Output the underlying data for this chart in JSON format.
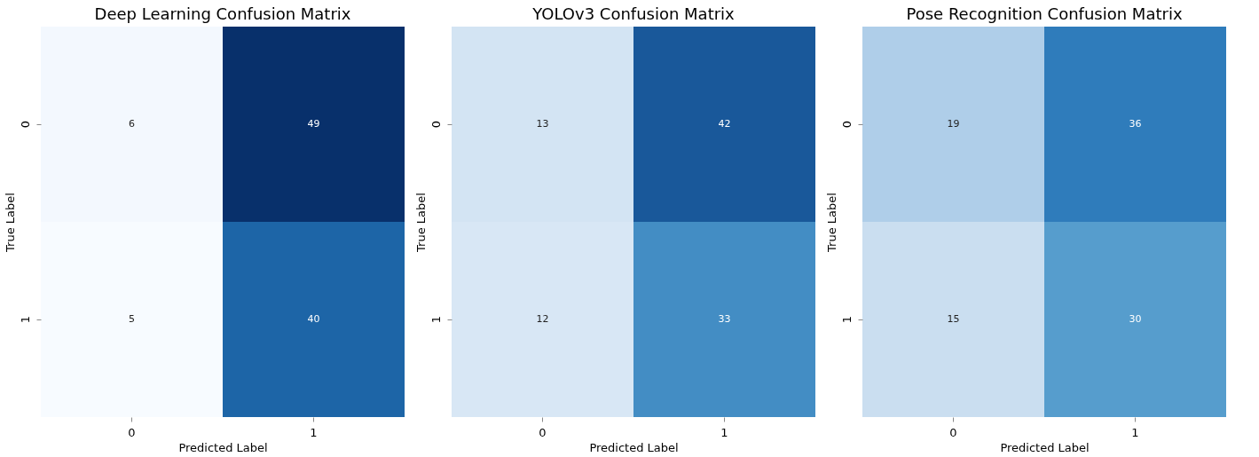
{
  "chart_data": [
    {
      "type": "heatmap",
      "title": "Deep Learning Confusion Matrix",
      "xlabel": "Predicted Label",
      "ylabel": "True Label",
      "categories": [
        "0",
        "1"
      ],
      "y_categories": [
        "0",
        "1"
      ],
      "cells": [
        [
          6,
          49
        ],
        [
          5,
          40
        ]
      ],
      "data_labels": true
    },
    {
      "type": "heatmap",
      "title": "YOLOv3 Confusion Matrix",
      "xlabel": "Predicted Label",
      "ylabel": "True Label",
      "categories": [
        "0",
        "1"
      ],
      "y_categories": [
        "0",
        "1"
      ],
      "cells": [
        [
          13,
          42
        ],
        [
          12,
          33
        ]
      ],
      "data_labels": true
    },
    {
      "type": "heatmap",
      "title": "Pose Recognition Confusion Matrix",
      "xlabel": "Predicted Label",
      "ylabel": "True Label",
      "categories": [
        "0",
        "1"
      ],
      "y_categories": [
        "0",
        "1"
      ],
      "cells": [
        [
          19,
          36
        ],
        [
          15,
          30
        ]
      ],
      "data_labels": true
    }
  ]
}
